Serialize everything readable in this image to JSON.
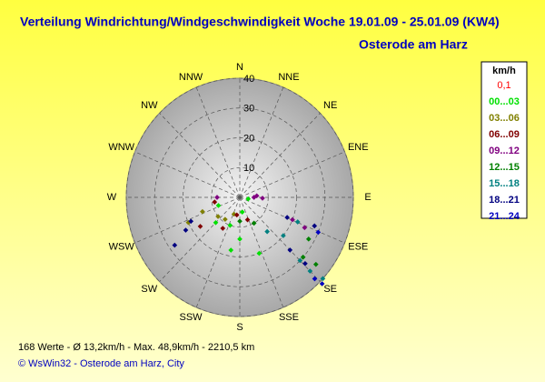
{
  "chart_data": {
    "type": "polar_scatter",
    "title": "Verteilung Windrichtung/Windgeschwindigkeit  Woche 19.01.09 - 25.01.09 (KW4)",
    "subtitle": "Osterode am Harz",
    "categories": [
      "N",
      "NNE",
      "NE",
      "ENE",
      "E",
      "ESE",
      "SE",
      "SSE",
      "S",
      "SSW",
      "SW",
      "WSW",
      "W",
      "WNW",
      "NW",
      "NNW"
    ],
    "ylim": [
      0,
      40
    ],
    "yticks": [
      10,
      20,
      30,
      40
    ],
    "grid": true,
    "legend_title": "km/h",
    "series": [
      {
        "name": "0,1",
        "color": "#ff0000",
        "x": [],
        "values": []
      },
      {
        "name": "00...03",
        "color": "#00e000",
        "x": [
          200,
          190,
          170,
          250,
          100,
          225,
          180,
          160
        ],
        "values": [
          10,
          18,
          5,
          8,
          3,
          12,
          14,
          20
        ]
      },
      {
        "name": "03...06",
        "color": "#808000",
        "x": [
          245,
          250,
          230,
          200,
          215
        ],
        "values": [
          20,
          14,
          10,
          6,
          9
        ]
      },
      {
        "name": "06...09",
        "color": "#800000",
        "x": [
          235,
          210,
          160,
          260,
          190
        ],
        "values": [
          17,
          12,
          8,
          9,
          6
        ]
      },
      {
        "name": "09...12",
        "color": "#800080",
        "x": [
          90,
          112,
          114,
          270,
          85,
          92
        ],
        "values": [
          5,
          20,
          25,
          8,
          6,
          8
        ]
      },
      {
        "name": "12...15",
        "color": "#008000",
        "x": [
          130,
          120,
          180,
          150,
          132
        ],
        "values": [
          35,
          28,
          8,
          10,
          30
        ]
      },
      {
        "name": "15...18",
        "color": "#008080",
        "x": [
          135,
          135,
          133,
          112,
          140,
          130
        ],
        "values": [
          30,
          35,
          40,
          22,
          15,
          20
        ]
      },
      {
        "name": "18...21",
        "color": "#000080",
        "x": [
          135,
          134,
          112,
          240,
          235,
          110,
          245
        ],
        "values": [
          25,
          32,
          18,
          22,
          28,
          28,
          19
        ]
      },
      {
        "name": "21...24",
        "color": "#0000c0",
        "x": [
          135,
          136,
          113
        ],
        "values": [
          41,
          38,
          30
        ]
      }
    ],
    "footer": "168 Werte   -   Ø 13,2km/h   -   Max. 48,9km/h   -   2210,5 km",
    "credit": "© WsWin32  -  Osterode am Harz, City"
  }
}
